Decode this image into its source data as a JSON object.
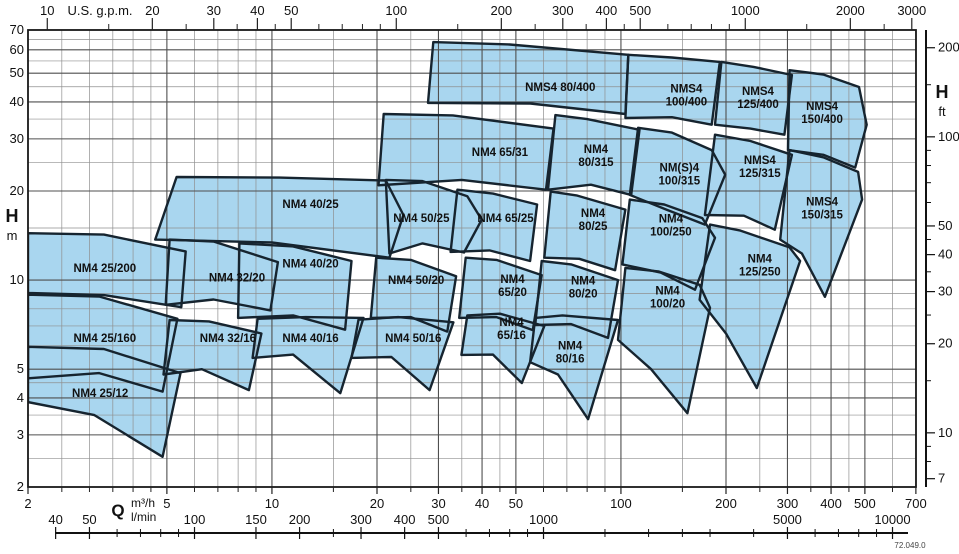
{
  "colors": {
    "region_fill": "#a9d6ef",
    "region_stroke": "#16242f",
    "grid_major": "#4f4f4f",
    "grid_minor": "#8f8f8f",
    "border": "#1a1a1a",
    "text": "#111111"
  },
  "watermark": "72.049.0",
  "axes": {
    "q": {
      "label_q": "Q",
      "label_m3h": "m³/h",
      "label_lmin": "l/min",
      "majors": [
        2,
        5,
        10,
        20,
        30,
        40,
        50,
        100,
        200,
        300,
        400,
        500,
        700
      ],
      "minors": [
        2.5,
        3,
        3.5,
        4,
        4.5,
        6,
        7,
        8,
        9,
        15,
        25,
        35,
        45,
        60,
        70,
        80,
        90,
        150,
        250,
        350,
        450,
        600
      ]
    },
    "h_left": {
      "label_h": "H",
      "label_unit": "m",
      "majors": [
        2,
        3,
        4,
        5,
        10,
        20,
        30,
        40,
        50,
        60,
        70
      ],
      "minors": [
        2.5,
        3.5,
        4.5,
        6,
        7,
        8,
        9,
        15,
        25,
        35,
        45,
        55,
        65
      ]
    },
    "gpm": {
      "label": "U.S. g.p.m.",
      "majors": [
        10,
        20,
        30,
        40,
        50,
        100,
        200,
        300,
        400,
        500,
        1000,
        2000,
        3000
      ],
      "minors": [
        15,
        25,
        35,
        45,
        60,
        70,
        80,
        90,
        150,
        250,
        350,
        450,
        600,
        700,
        800,
        900,
        1500,
        2500
      ]
    },
    "lmin": {
      "majors": [
        40,
        50,
        100,
        150,
        200,
        300,
        400,
        500,
        1000,
        5000,
        10000
      ],
      "minors": [
        60,
        70,
        80,
        90,
        250,
        600,
        700,
        800,
        900,
        1500,
        2000,
        2500,
        3000,
        4000,
        6000,
        7000,
        8000,
        9000
      ]
    },
    "ft": {
      "label_h": "H",
      "label_unit": "ft",
      "majors": [
        7,
        10,
        20,
        30,
        40,
        50,
        100,
        200
      ],
      "minors": [
        8,
        9,
        15,
        25,
        35,
        45,
        60,
        70,
        80,
        90,
        150
      ]
    }
  },
  "chart_data": {
    "type": "area",
    "xlabel": "Q (m³/h, l/min, U.S. g.p.m.)",
    "ylabel": "H (m, ft)",
    "x_range_m3h": [
      2,
      700
    ],
    "y_range_m": [
      2,
      70
    ],
    "log_x": true,
    "log_y": true,
    "regions": [
      {
        "name": "NM4 25/200",
        "label": [
          "NM4 25/200"
        ],
        "label_at": [
          3.32,
          11.0
        ],
        "outline": [
          [
            2,
            14.4
          ],
          [
            3.3,
            14.25
          ],
          [
            5.66,
            12.5
          ],
          [
            5.5,
            8.1
          ],
          [
            3.3,
            8.9
          ],
          [
            2,
            9.05
          ]
        ]
      },
      {
        "name": "NM4 25/160",
        "label": [
          "NM4 25/160"
        ],
        "label_at": [
          3.32,
          6.38
        ],
        "outline": [
          [
            2,
            8.93
          ],
          [
            3.2,
            8.8
          ],
          [
            5.36,
            7.4
          ],
          [
            4.86,
            4.2
          ],
          [
            3.2,
            4.85
          ],
          [
            2,
            4.66
          ]
        ]
      },
      {
        "name": "NM4 25/12",
        "label": [
          "NM4 25/12"
        ],
        "label_at": [
          3.22,
          4.15
        ],
        "outline": [
          [
            2,
            5.95
          ],
          [
            3.3,
            5.85
          ],
          [
            5.47,
            4.85
          ],
          [
            4.86,
            2.53
          ],
          [
            3.1,
            3.5
          ],
          [
            2,
            3.87
          ]
        ]
      },
      {
        "name": "NM4 32/20",
        "label": [
          "NM4 32/20"
        ],
        "label_at": [
          7.94,
          10.2
        ],
        "outline": [
          [
            5.09,
            13.7
          ],
          [
            6.8,
            13.5
          ],
          [
            10.4,
            11.5
          ],
          [
            9.9,
            7.9
          ],
          [
            6.8,
            8.6
          ],
          [
            4.96,
            8.25
          ]
        ]
      },
      {
        "name": "NM4 32/16",
        "label": [
          "NM4 32/16"
        ],
        "label_at": [
          7.48,
          6.38
        ],
        "outline": [
          [
            5.09,
            7.33
          ],
          [
            6.6,
            7.25
          ],
          [
            9.33,
            6.6
          ],
          [
            8.59,
            4.25
          ],
          [
            6.3,
            5.0
          ],
          [
            4.89,
            4.8
          ]
        ]
      },
      {
        "name": "NM4 40/25",
        "label": [
          "NM4 40/25"
        ],
        "label_at": [
          12.9,
          18.1
        ],
        "outline": [
          [
            5.33,
            22.3
          ],
          [
            10.5,
            22.2
          ],
          [
            21.2,
            21.7
          ],
          [
            23.8,
            16.6
          ],
          [
            21.7,
            11.9
          ],
          [
            10,
            13.4
          ],
          [
            4.63,
            13.7
          ]
        ]
      },
      {
        "name": "NM4 40/20",
        "label": [
          "NM4 40/20"
        ],
        "label_at": [
          12.9,
          11.4
        ],
        "outline": [
          [
            8.07,
            13.3
          ],
          [
            11.5,
            13.0
          ],
          [
            16.9,
            11.6
          ],
          [
            16.2,
            6.8
          ],
          [
            11.5,
            7.6
          ],
          [
            8.0,
            7.45
          ]
        ]
      },
      {
        "name": "NM4 40/16",
        "label": [
          "NM4 40/16"
        ],
        "label_at": [
          12.9,
          6.38
        ],
        "outline": [
          [
            9.1,
            7.4
          ],
          [
            12.5,
            7.5
          ],
          [
            18.3,
            7.45
          ],
          [
            15.7,
            4.15
          ],
          [
            11.5,
            5.6
          ],
          [
            8.8,
            5.46
          ]
        ]
      },
      {
        "name": "NM4 50/25",
        "label": [
          "NM4 50/25"
        ],
        "label_at": [
          26.8,
          16.2
        ],
        "outline": [
          [
            21.2,
            21.8
          ],
          [
            27,
            21.6
          ],
          [
            36.3,
            19.2
          ],
          [
            39.9,
            16.0
          ],
          [
            35.5,
            12.4
          ],
          [
            27,
            13.3
          ],
          [
            21.7,
            12.3
          ]
        ]
      },
      {
        "name": "NM4 50/20",
        "label": [
          "NM4 50/20"
        ],
        "label_at": [
          25.9,
          10.0
        ],
        "outline": [
          [
            19.9,
            11.9
          ],
          [
            25,
            11.7
          ],
          [
            33.7,
            10.3
          ],
          [
            31.8,
            6.7
          ],
          [
            25,
            7.5
          ],
          [
            19.2,
            7.45
          ]
        ]
      },
      {
        "name": "NM4 50/16",
        "label": [
          "NM4 50/16"
        ],
        "label_at": [
          25.4,
          6.38
        ],
        "outline": [
          [
            17.7,
            7.35
          ],
          [
            23,
            7.5
          ],
          [
            33.1,
            7.2
          ],
          [
            28.3,
            4.25
          ],
          [
            22,
            5.5
          ],
          [
            16.9,
            5.46
          ]
        ]
      },
      {
        "name": "NM4 65/31",
        "label": [
          "NM4 65/31"
        ],
        "label_at": [
          45.0,
          27.1
        ],
        "outline": [
          [
            20.9,
            36.4
          ],
          [
            33,
            36.0
          ],
          [
            64.1,
            32.5
          ],
          [
            61,
            20.2
          ],
          [
            35,
            21.8
          ],
          [
            20.2,
            20.9
          ]
        ]
      },
      {
        "name": "NM4 65/25",
        "label": [
          "NM4 65/25"
        ],
        "label_at": [
          46.7,
          16.2
        ],
        "outline": [
          [
            34.0,
            20.2
          ],
          [
            43,
            19.6
          ],
          [
            57.5,
            18.0
          ],
          [
            54.9,
            11.6
          ],
          [
            42,
            12.6
          ],
          [
            32.5,
            12.45
          ]
        ]
      },
      {
        "name": "NM4 65/20",
        "label": [
          "NM4",
          "65/20"
        ],
        "label_at": [
          48.9,
          9.64
        ],
        "outline": [
          [
            35.9,
            11.9
          ],
          [
            44,
            11.7
          ],
          [
            59.3,
            10.4
          ],
          [
            55.9,
            6.78
          ],
          [
            44,
            7.5
          ],
          [
            34.4,
            7.45
          ]
        ]
      },
      {
        "name": "NM4 65/16",
        "label": [
          "NM4",
          "65/16"
        ],
        "label_at": [
          48.6,
          6.9
        ],
        "outline": [
          [
            36.3,
            7.6
          ],
          [
            45,
            7.7
          ],
          [
            60.3,
            7.0
          ],
          [
            52,
            4.49
          ],
          [
            43,
            5.6
          ],
          [
            34.9,
            5.59
          ]
        ]
      },
      {
        "name": "NM4 80/315",
        "label": [
          "NM4",
          "80/315"
        ],
        "label_at": [
          84.8,
          26.5
        ],
        "outline": [
          [
            64.9,
            36.1
          ],
          [
            80,
            35.0
          ],
          [
            113,
            32.2
          ],
          [
            107,
            19.4
          ],
          [
            82,
            21.0
          ],
          [
            61.8,
            20.2
          ]
        ]
      },
      {
        "name": "NM4 80/25",
        "label": [
          "NM4",
          "80/25"
        ],
        "label_at": [
          83.2,
          16.1
        ],
        "outline": [
          [
            62.9,
            19.9
          ],
          [
            75,
            19.3
          ],
          [
            103,
            17.3
          ],
          [
            96.2,
            10.8
          ],
          [
            76,
            11.8
          ],
          [
            60.3,
            11.9
          ]
        ]
      },
      {
        "name": "NM4 80/20",
        "label": [
          "NM4",
          "80/20"
        ],
        "label_at": [
          77.9,
          9.5
        ],
        "outline": [
          [
            59.3,
            11.6
          ],
          [
            72,
            11.3
          ],
          [
            98.1,
            10.0
          ],
          [
            91.8,
            6.38
          ],
          [
            72,
            7.1
          ],
          [
            56.8,
            7.05
          ]
        ]
      },
      {
        "name": "NM4 80/16",
        "label": [
          "NM4",
          "80/16"
        ],
        "label_at": [
          71.5,
          5.73
        ],
        "outline": [
          [
            56.8,
            7.45
          ],
          [
            68,
            7.6
          ],
          [
            98.1,
            7.33
          ],
          [
            80.5,
            3.39
          ],
          [
            66,
            4.8
          ],
          [
            54.9,
            5.28
          ]
        ]
      },
      {
        "name": "NMS4 80/400",
        "label": [
          "NMS4 80/400"
        ],
        "label_at": [
          67.0,
          44.9
        ],
        "outline": [
          [
            29.0,
            63.7
          ],
          [
            48,
            62.5
          ],
          [
            105,
            57.7
          ],
          [
            103,
            36.4
          ],
          [
            55,
            39.5
          ],
          [
            28.0,
            39.7
          ]
        ]
      },
      {
        "name": "NMS4 100/400",
        "label": [
          "NMS4",
          "100/400"
        ],
        "label_at": [
          154,
          42.3
        ],
        "outline": [
          [
            105,
            57.7
          ],
          [
            140,
            56.5
          ],
          [
            192,
            54.6
          ],
          [
            182,
            33.5
          ],
          [
            140,
            35.5
          ],
          [
            103,
            35.3
          ]
        ]
      },
      {
        "name": "NM(S)4 100/315",
        "label": [
          "NM(S)4",
          "100/315"
        ],
        "label_at": [
          147,
          22.9
        ],
        "outline": [
          [
            112,
            32.7
          ],
          [
            140,
            31.5
          ],
          [
            182,
            27.5
          ],
          [
            199,
            22.7
          ],
          [
            174,
            15.4
          ],
          [
            135,
            17.3
          ],
          [
            106,
            19.4
          ]
        ]
      },
      {
        "name": "NM4 100/250",
        "label": [
          "NM4",
          "100/250"
        ],
        "label_at": [
          139,
          15.4
        ],
        "outline": [
          [
            106,
            18.7
          ],
          [
            133,
            18.0
          ],
          [
            171,
            16.2
          ],
          [
            186,
            13.9
          ],
          [
            163,
            9.28
          ],
          [
            130,
            10.6
          ],
          [
            101,
            11.3
          ]
        ]
      },
      {
        "name": "NM4 100/20",
        "label": [
          "NM4",
          "100/20"
        ],
        "label_at": [
          136,
          8.8
        ],
        "outline": [
          [
            103,
            11.0
          ],
          [
            128,
            10.7
          ],
          [
            168,
            9.64
          ],
          [
            180,
            8.06
          ],
          [
            155,
            3.55
          ],
          [
            122,
            5.0
          ],
          [
            98.1,
            6.28
          ]
        ]
      },
      {
        "name": "NMS4 125/400",
        "label": [
          "NMS4",
          "125/400"
        ],
        "label_at": [
          247,
          41.6
        ],
        "outline": [
          [
            194,
            54.6
          ],
          [
            240,
            52.5
          ],
          [
            309,
            49.3
          ],
          [
            294,
            31.0
          ],
          [
            235,
            32.5
          ],
          [
            186,
            33.5
          ]
        ]
      },
      {
        "name": "NMS4 125/315",
        "label": [
          "NMS4",
          "125/315"
        ],
        "label_at": [
          250,
          24.3
        ],
        "outline": [
          [
            186,
            31.0
          ],
          [
            235,
            29.5
          ],
          [
            309,
            26.5
          ],
          [
            276,
            14.8
          ],
          [
            225,
            16.5
          ],
          [
            174,
            16.6
          ]
        ]
      },
      {
        "name": "NM4 125/250",
        "label": [
          "NM4",
          "125/250"
        ],
        "label_at": [
          250,
          11.3
        ],
        "outline": [
          [
            180,
            15.4
          ],
          [
            220,
            14.7
          ],
          [
            304,
            12.9
          ],
          [
            326,
            11.6
          ],
          [
            245,
            4.32
          ],
          [
            200,
            6.6
          ],
          [
            168,
            8.58
          ]
        ]
      },
      {
        "name": "NMS4 150/400",
        "label": [
          "NMS4",
          "150/400"
        ],
        "label_at": [
          377,
          37.0
        ],
        "outline": [
          [
            304,
            51.2
          ],
          [
            380,
            49.5
          ],
          [
            481,
            44.9
          ],
          [
            506,
            33.5
          ],
          [
            469,
            24.0
          ],
          [
            380,
            26.5
          ],
          [
            301,
            27.5
          ]
        ]
      },
      {
        "name": "NMS4 150/315",
        "label": [
          "NMS4",
          "150/315"
        ],
        "label_at": [
          377,
          17.6
        ],
        "outline": [
          [
            304,
            27.5
          ],
          [
            380,
            26.0
          ],
          [
            478,
            23.2
          ],
          [
            491,
            18.7
          ],
          [
            384,
            8.78
          ],
          [
            330,
            12.3
          ],
          [
            286,
            13.7
          ]
        ]
      }
    ]
  }
}
